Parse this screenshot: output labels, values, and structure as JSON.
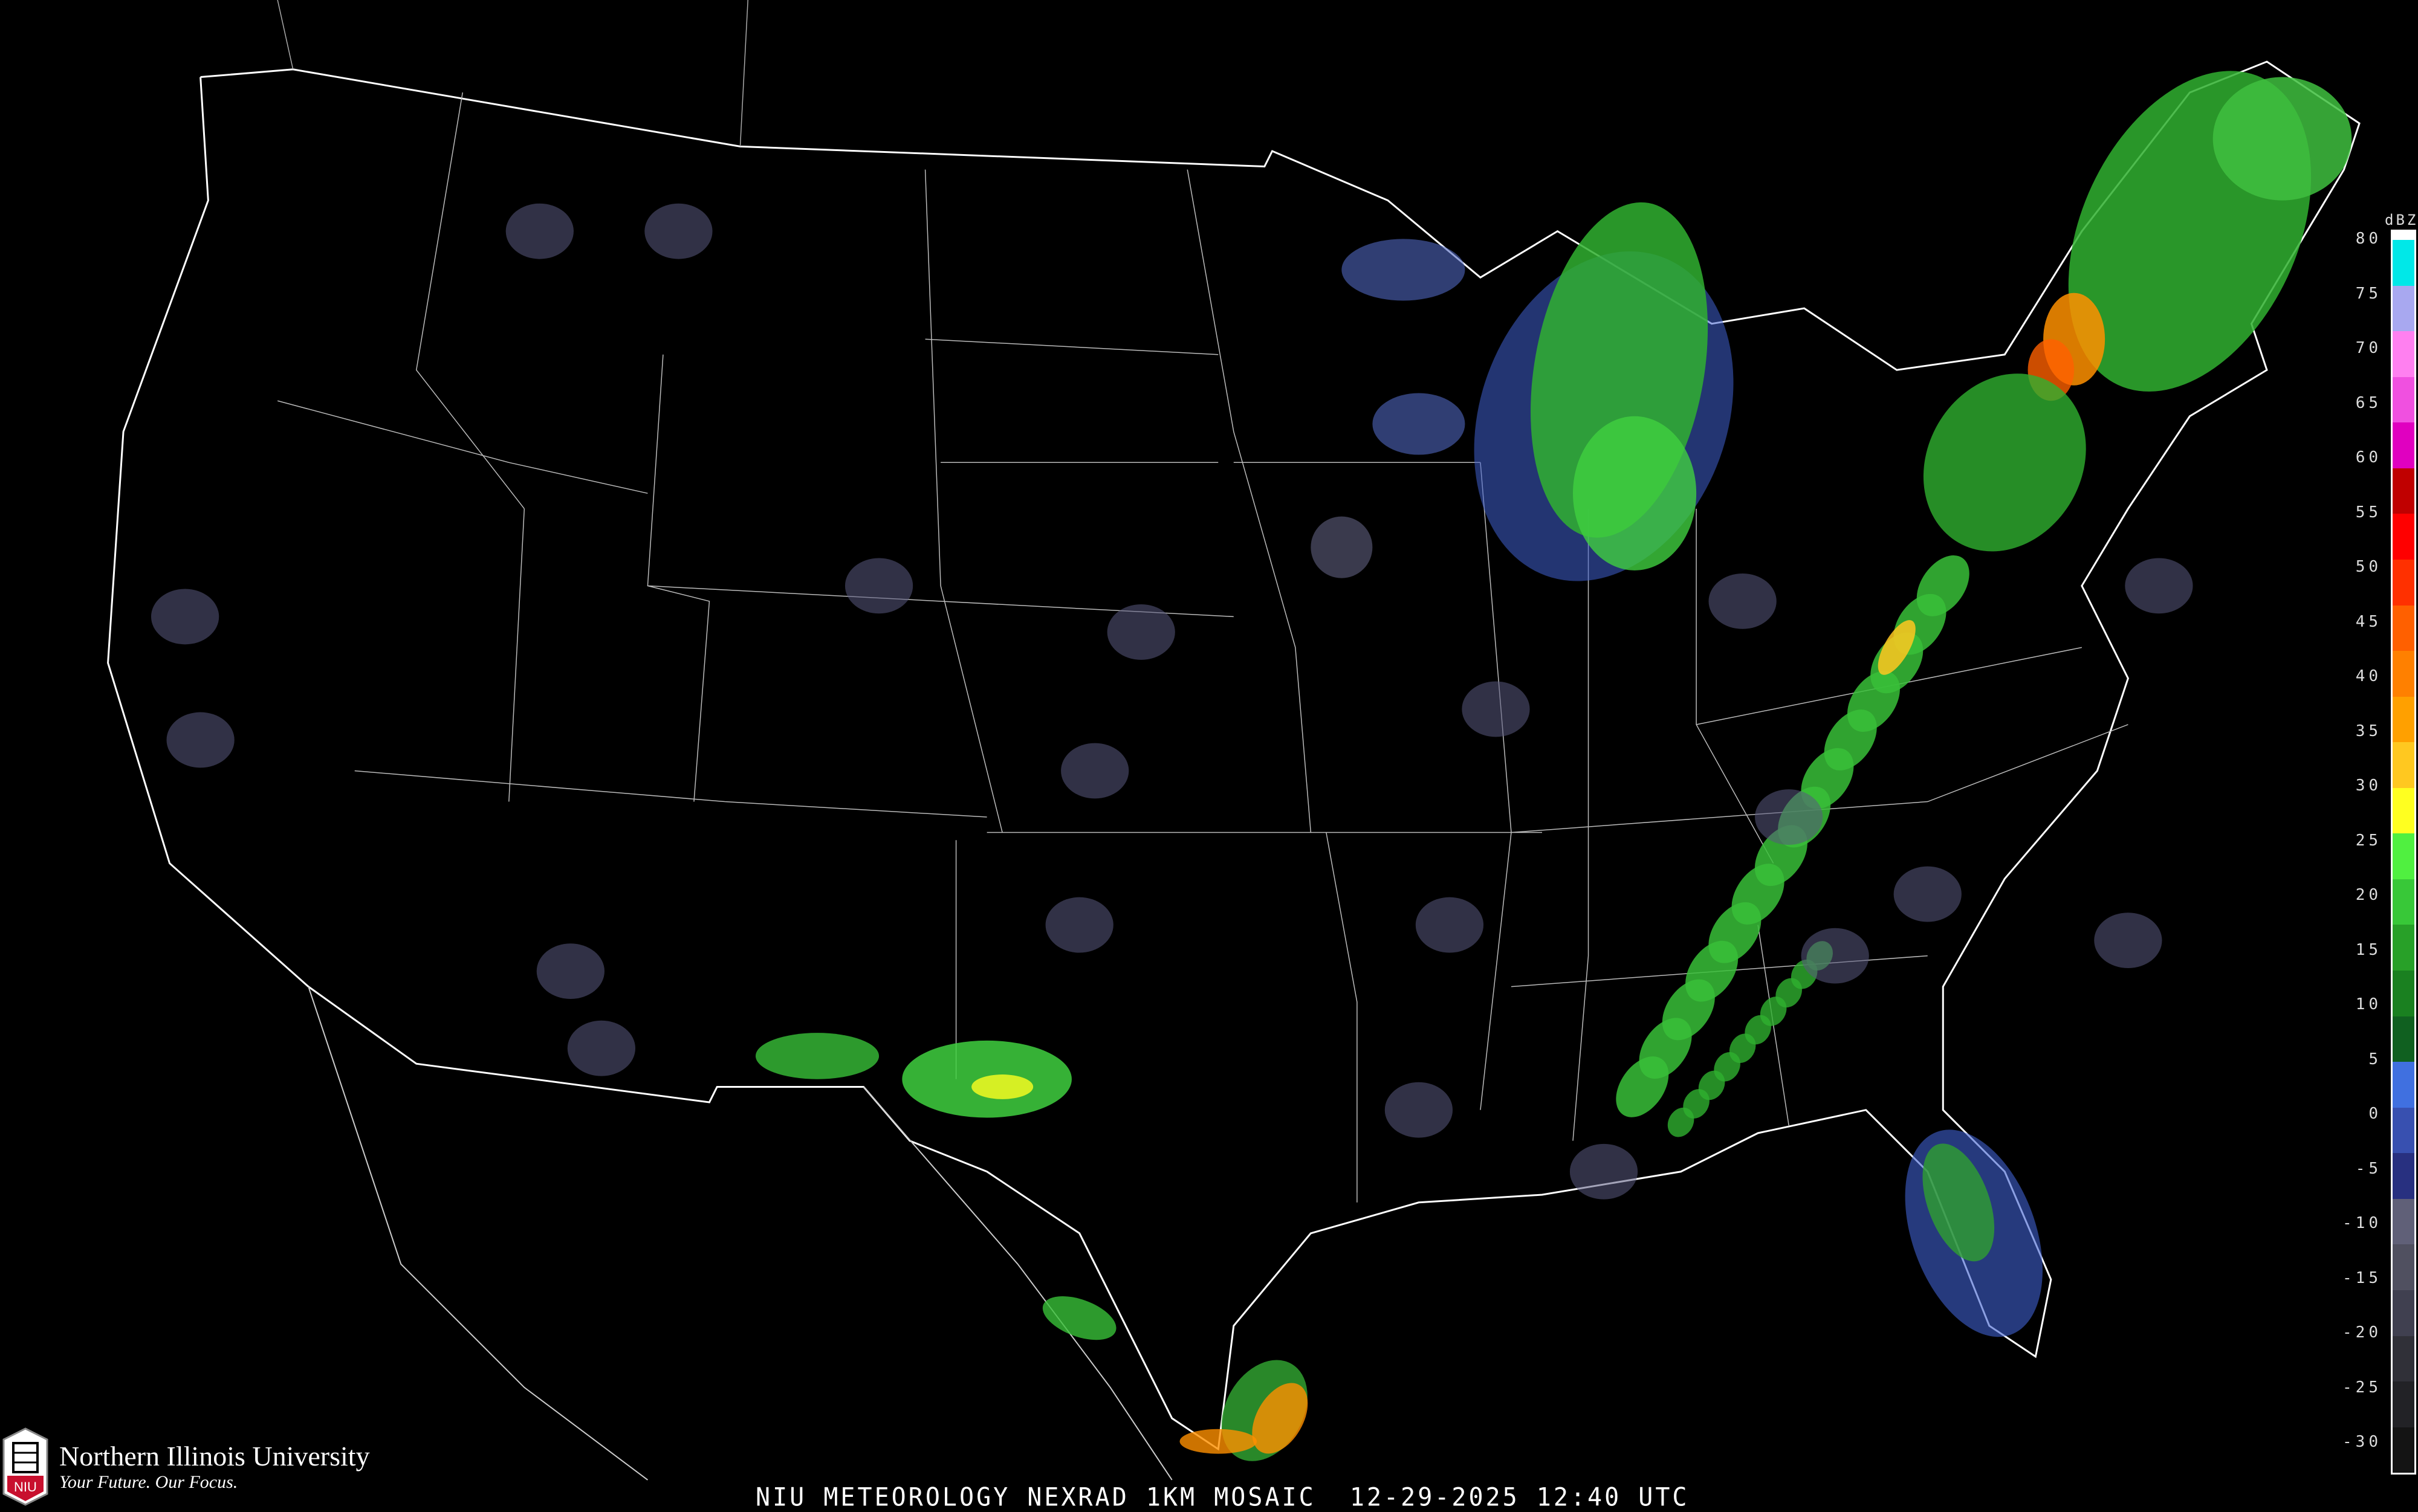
{
  "map": {
    "title": "NIU METEOROLOGY NEXRAD 1KM MOSAIC  12-29-2025 12:40 UTC",
    "product": "NEXRAD 1KM MOSAIC",
    "date": "12-29-2025",
    "time": "12:40 UTC",
    "region": "Contiguous United States",
    "background_color": "#000000",
    "boundary_color": "#ffffff",
    "road_color": "#8a4a20"
  },
  "legend": {
    "unit": "dBZ",
    "labels": [
      "80",
      "75",
      "70",
      "65",
      "60",
      "55",
      "50",
      "45",
      "40",
      "35",
      "30",
      "25",
      "20",
      "15",
      "10",
      "5",
      "0",
      "-5",
      "-10",
      "-15",
      "-20",
      "-25",
      "-30"
    ],
    "colors": [
      "#00e8e8",
      "#a8a8f0",
      "#ff80f0",
      "#f050e0",
      "#e000c0",
      "#c00000",
      "#ff0000",
      "#ff3000",
      "#ff6000",
      "#ff8000",
      "#ffa000",
      "#ffc820",
      "#ffff20",
      "#50f040",
      "#38c838",
      "#28a028",
      "#1a8020",
      "#106020",
      "#4070e0",
      "#3850b0",
      "#283080",
      "#606078",
      "#505060",
      "#404050",
      "#303038",
      "#222226",
      "#141414"
    ]
  },
  "branding": {
    "university": "Northern Illinois University",
    "tagline": "Your Future. Our Focus.",
    "logo_letters": "NIU",
    "logo_color": "#c8102e"
  }
}
